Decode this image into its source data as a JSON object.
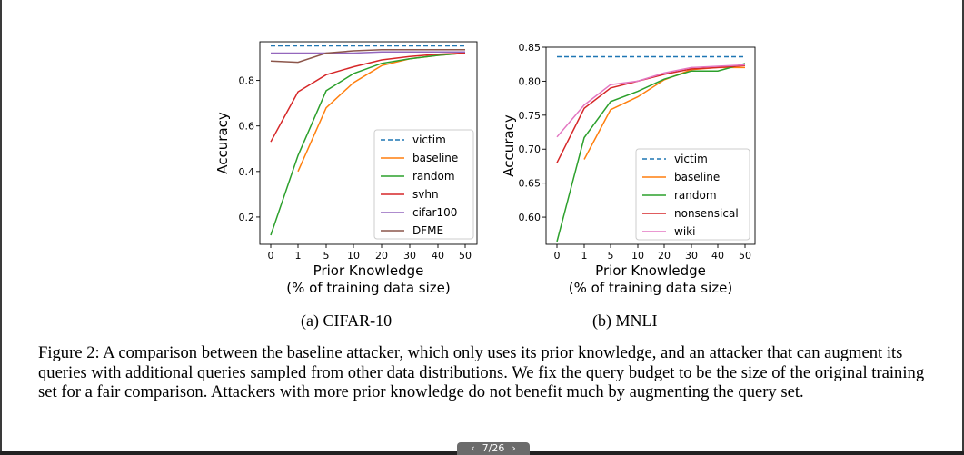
{
  "charts": [
    {
      "caption": "(a) CIFAR-10",
      "chart_data": {
        "type": "line",
        "xlabel": "Prior Knowledge",
        "xlabel2": "(% of training data size)",
        "ylabel": "Accuracy",
        "categories": [
          "0",
          "1",
          "5",
          "10",
          "20",
          "30",
          "40",
          "50"
        ],
        "ylim": [
          0.08,
          0.97
        ],
        "yticks": [
          0.2,
          0.4,
          0.6,
          0.8
        ],
        "ytick_labels": [
          "0.2",
          "0.4",
          "0.6",
          "0.8"
        ],
        "legend_position": "lower-right",
        "series": [
          {
            "name": "victim",
            "color": "#1f77b4",
            "dashed": true,
            "values": [
              0.952,
              0.952,
              0.952,
              0.952,
              0.952,
              0.952,
              0.952,
              0.952
            ]
          },
          {
            "name": "baseline",
            "color": "#ff7f0e",
            "values": [
              null,
              0.4,
              0.68,
              0.79,
              0.865,
              0.895,
              0.91,
              0.92
            ]
          },
          {
            "name": "random",
            "color": "#2ca02c",
            "values": [
              0.12,
              0.47,
              0.755,
              0.83,
              0.875,
              0.895,
              0.91,
              0.92
            ]
          },
          {
            "name": "svhn",
            "color": "#d62728",
            "values": [
              0.53,
              0.75,
              0.825,
              0.86,
              0.89,
              0.905,
              0.915,
              0.92
            ]
          },
          {
            "name": "cifar100",
            "color": "#9467bd",
            "values": [
              0.92,
              0.92,
              0.92,
              0.92,
              0.925,
              0.925,
              0.925,
              0.925
            ]
          },
          {
            "name": "DFME",
            "color": "#8c564b",
            "values": [
              0.885,
              0.88,
              0.92,
              0.93,
              0.935,
              0.935,
              0.935,
              0.935
            ]
          }
        ]
      }
    },
    {
      "caption": "(b) MNLI",
      "chart_data": {
        "type": "line",
        "xlabel": "Prior Knowledge",
        "xlabel2": "(% of training data size)",
        "ylabel": "Accuracy",
        "categories": [
          "0",
          "1",
          "5",
          "10",
          "20",
          "30",
          "40",
          "50"
        ],
        "ylim": [
          0.56,
          0.85
        ],
        "yticks": [
          0.6,
          0.65,
          0.7,
          0.75,
          0.8,
          0.85
        ],
        "ytick_labels": [
          "0.60",
          "0.65",
          "0.70",
          "0.75",
          "0.80",
          "0.85"
        ],
        "legend_position": "lower-right",
        "series": [
          {
            "name": "victim",
            "color": "#1f77b4",
            "dashed": true,
            "values": [
              0.836,
              0.836,
              0.836,
              0.836,
              0.836,
              0.836,
              0.836,
              0.836
            ]
          },
          {
            "name": "baseline",
            "color": "#ff7f0e",
            "values": [
              null,
              0.685,
              0.758,
              0.777,
              0.802,
              0.817,
              0.82,
              0.82
            ]
          },
          {
            "name": "random",
            "color": "#2ca02c",
            "values": [
              0.564,
              0.717,
              0.77,
              0.785,
              0.803,
              0.815,
              0.815,
              0.826
            ]
          },
          {
            "name": "nonsensical",
            "color": "#d62728",
            "values": [
              0.68,
              0.76,
              0.79,
              0.8,
              0.81,
              0.818,
              0.82,
              0.823
            ]
          },
          {
            "name": "wiki",
            "color": "#e377c2",
            "values": [
              0.718,
              0.765,
              0.795,
              0.8,
              0.812,
              0.82,
              0.822,
              0.824
            ]
          }
        ]
      }
    }
  ],
  "figure_caption": "Figure 2: A comparison between the baseline attacker, which only uses its prior knowledge, and an attacker that can augment its queries with additional queries sampled from other data distributions. We fix the query budget to be the size of the original training set for a fair comparison. Attackers with more prior knowledge do not benefit much by augmenting the query set.",
  "pager": {
    "prev": "‹",
    "label": "7/26",
    "next": "›"
  }
}
